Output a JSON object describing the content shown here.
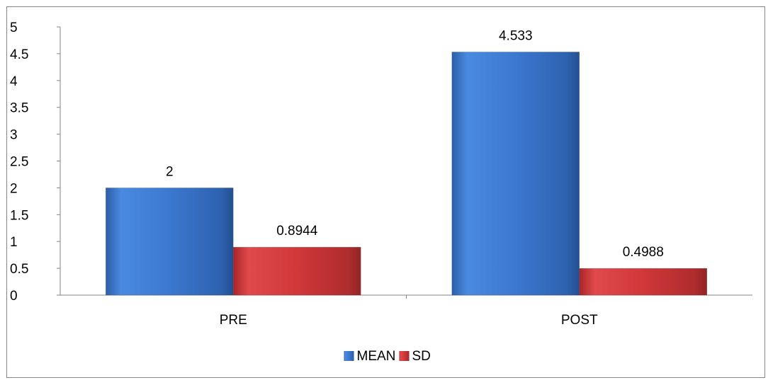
{
  "chart_data": {
    "type": "bar",
    "categories": [
      "PRE",
      "POST"
    ],
    "series": [
      {
        "name": "MEAN",
        "values": [
          2,
          4.533
        ],
        "labels": [
          "2",
          "4.533"
        ],
        "color": "#3C78D0"
      },
      {
        "name": "SD",
        "values": [
          0.8944,
          0.4988
        ],
        "labels": [
          "0.8944",
          "0.4988"
        ],
        "color": "#D0383A"
      }
    ],
    "yticks": [
      "0",
      "0.5",
      "1",
      "1.5",
      "2",
      "2.5",
      "3",
      "3.5",
      "4",
      "4.5",
      "5"
    ],
    "ylim": [
      0,
      5
    ],
    "title": "",
    "xlabel": "",
    "ylabel": "",
    "grid": false,
    "legend": "bottom"
  }
}
